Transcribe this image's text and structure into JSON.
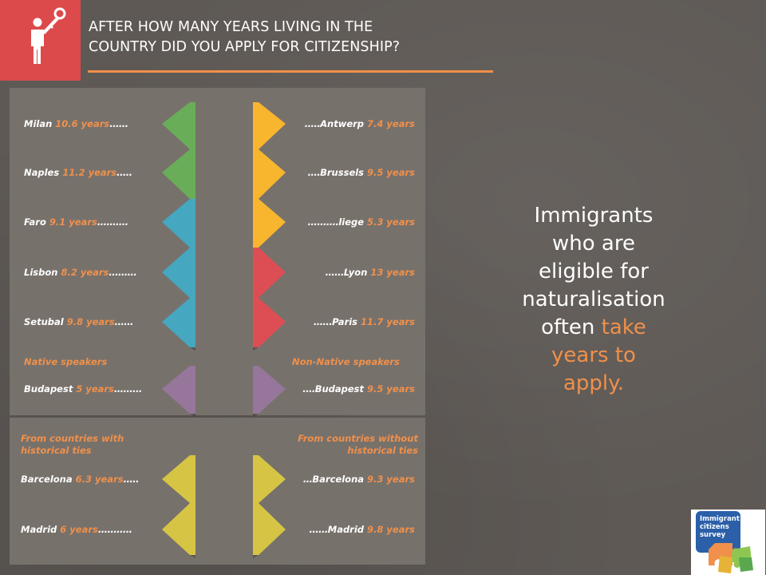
{
  "heading": {
    "line1": "AFTER HOW MANY YEARS LIVING IN THE",
    "line2": "COUNTRY DID YOU APPLY FOR CITIZENSHIP?"
  },
  "claim": {
    "l1": "Immigrants",
    "l2": "who are",
    "l3": "eligible for",
    "l4": "naturalisation",
    "l5a": "often ",
    "l5b": "take",
    "l6": "years to",
    "l7": "apply."
  },
  "group_labels": {
    "native": "Native speakers",
    "non_native": "Non-Native speakers",
    "ties_l1": "From countries with",
    "ties_l2": "historical ties",
    "no_ties_l1": "From countries without",
    "no_ties_l2": "historical ties"
  },
  "logo": {
    "l1": "Immigrant",
    "l2": "citizens",
    "l3": "survey"
  },
  "colors": {
    "background": "#5e5955",
    "panel": "#77716c",
    "accent_orange": "#f0904a",
    "badge_red": "#dc4a4c",
    "italy_green": "#6aad58",
    "portugal_blue": "#45a7c0",
    "belgium_yellow": "#f8b52e",
    "france_red": "#dd4d54",
    "hungary_purple": "#96769a",
    "spain_yellow": "#d6c444"
  },
  "icons": [
    "key-person-icon",
    "puzzle-logo-icon"
  ],
  "chart_data": {
    "type": "table",
    "unit": "years",
    "rows": [
      {
        "city": "Milan",
        "label": "10.6 years",
        "value": 10.6,
        "side": "left",
        "color": "#6aad58"
      },
      {
        "city": "Naples",
        "label": "11.2 years",
        "value": 11.2,
        "side": "left",
        "color": "#6aad58"
      },
      {
        "city": "Faro",
        "label": "9.1 years",
        "value": 9.1,
        "side": "left",
        "color": "#45a7c0"
      },
      {
        "city": "Lisbon",
        "label": "8.2 years",
        "value": 8.2,
        "side": "left",
        "color": "#45a7c0"
      },
      {
        "city": "Setubal",
        "label": "9.8 years",
        "value": 9.8,
        "side": "left",
        "color": "#45a7c0"
      },
      {
        "city": "Antwerp",
        "label": "7.4 years",
        "value": 7.4,
        "side": "right",
        "color": "#f8b52e"
      },
      {
        "city": "Brussels",
        "label": "9.5 years",
        "value": 9.5,
        "side": "right",
        "color": "#f8b52e"
      },
      {
        "city": "liege",
        "label": "5.3 years",
        "value": 5.3,
        "side": "right",
        "color": "#f8b52e"
      },
      {
        "city": "Lyon",
        "label": "13 years",
        "value": 13,
        "side": "right",
        "color": "#dd4d54"
      },
      {
        "city": "Paris",
        "label": "11.7 years",
        "value": 11.7,
        "side": "right",
        "color": "#dd4d54"
      },
      {
        "city": "Budapest",
        "label": "5 years",
        "value": 5,
        "side": "left",
        "group": "Native speakers",
        "color": "#96769a"
      },
      {
        "city": "Budapest",
        "label": "9.5 years",
        "value": 9.5,
        "side": "right",
        "group": "Non-Native speakers",
        "color": "#96769a"
      },
      {
        "city": "Barcelona",
        "label": "6.3 years",
        "value": 6.3,
        "side": "left",
        "group": "From countries with historical ties",
        "color": "#d6c444"
      },
      {
        "city": "Madrid",
        "label": "6 years",
        "value": 6,
        "side": "left",
        "group": "From countries with historical ties",
        "color": "#d6c444"
      },
      {
        "city": "Barcelona",
        "label": "9.3 years",
        "value": 9.3,
        "side": "right",
        "group": "From countries without historical ties",
        "color": "#d6c444"
      },
      {
        "city": "Madrid",
        "label": "9.8 years",
        "value": 9.8,
        "side": "right",
        "group": "From countries without historical ties",
        "color": "#d6c444"
      }
    ]
  }
}
